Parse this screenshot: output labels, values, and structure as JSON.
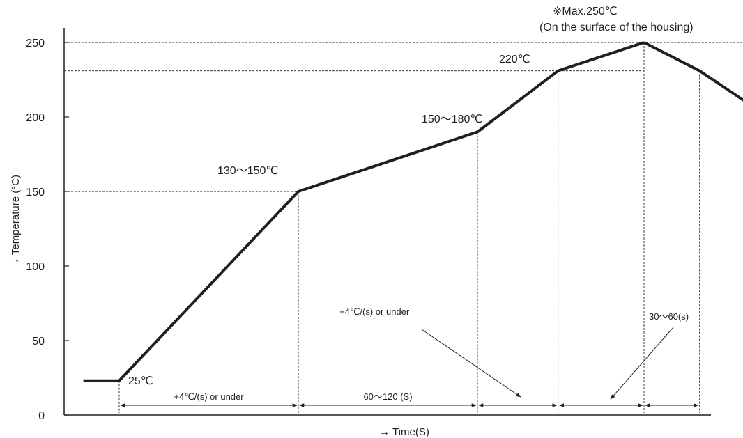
{
  "chart_data": {
    "type": "line",
    "title": "",
    "xlabel": "→ Time(S)",
    "ylabel": "→ Temperature (°C)",
    "ylim": [
      0,
      260
    ],
    "yticks": [
      0,
      50,
      100,
      150,
      200,
      250
    ],
    "grid": false,
    "series": [
      {
        "x": [
          -2,
          0,
          10,
          20,
          24.5,
          29.3
        ],
        "y": [
          23,
          23,
          150,
          190,
          231,
          250
        ]
      },
      {
        "x": [
          29.3,
          32.4,
          35.5
        ],
        "y": [
          250,
          231,
          206
        ]
      }
    ],
    "reference_lines": [
      {
        "y": 250,
        "x_to": 44
      },
      {
        "y": 231,
        "x_to": 29.3
      },
      {
        "y": 190,
        "x_to": 20
      },
      {
        "y": 150,
        "x_to": 10
      }
    ],
    "vertical_markers_x": [
      0,
      10,
      20,
      24.5,
      29.3,
      32.4
    ],
    "annotations": {
      "peak_max": "※Max.250℃",
      "peak_note": "(On the surface of the housing)",
      "t220": "220℃",
      "t150_180": "150～180℃",
      "t130_150": "130～150℃",
      "t25": "25℃",
      "rate_top": "+4℃/(s) or under",
      "hold_time": "30～60(s)"
    },
    "intervals": [
      {
        "label": "+4℃/(s) or under",
        "x_start": 0,
        "x_end": 10
      },
      {
        "label": "60～120 (S)",
        "x_start": 10,
        "x_end": 20
      },
      {
        "label": "",
        "x_start": 20,
        "x_end": 24.5
      },
      {
        "label": "",
        "x_start": 24.5,
        "x_end": 29.3
      },
      {
        "label": "",
        "x_start": 29.3,
        "x_end": 32.4
      }
    ]
  }
}
